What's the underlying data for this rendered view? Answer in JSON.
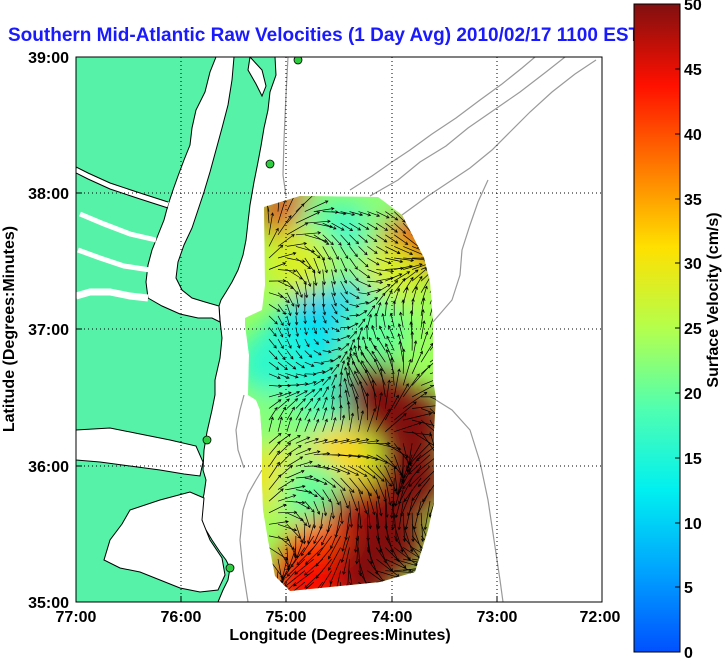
{
  "chart_data": {
    "type": "heatmap",
    "title": "Southern Mid-Atlantic Raw Velocities (1 Day Avg) 2010/02/17 1100 EST",
    "xlabel": "Longitude (Degrees:Minutes)",
    "ylabel": "Latitude (Degrees:Minutes)",
    "colorbar_label": "Surface Velocity (cm/s)",
    "x_ticks": [
      "77:00",
      "76:00",
      "75:00",
      "74:00",
      "73:00",
      "72:00"
    ],
    "y_ticks": [
      "39:00",
      "38:00",
      "37:00",
      "36:00",
      "35:00"
    ],
    "colorbar_ticks": [
      "50",
      "45",
      "40",
      "35",
      "30",
      "25",
      "20",
      "15",
      "10",
      "5",
      "0"
    ],
    "xlim_west_longitude": [
      77,
      72
    ],
    "ylim_latitude": [
      35,
      39
    ],
    "clim": [
      0,
      50
    ],
    "colormap": "jet",
    "grid": "dotted",
    "velocity_field": [
      {
        "lon": 74.9,
        "lat": 37.8,
        "speed": 45
      },
      {
        "lon": 74.6,
        "lat": 37.75,
        "speed": 20
      },
      {
        "lon": 74.25,
        "lat": 37.7,
        "speed": 15
      },
      {
        "lon": 74.0,
        "lat": 37.8,
        "speed": 22
      },
      {
        "lon": 73.8,
        "lat": 37.6,
        "speed": 45
      },
      {
        "lon": 74.0,
        "lat": 37.4,
        "speed": 28
      },
      {
        "lon": 74.6,
        "lat": 37.4,
        "speed": 22
      },
      {
        "lon": 74.9,
        "lat": 37.5,
        "speed": 28
      },
      {
        "lon": 74.75,
        "lat": 37.0,
        "speed": 5
      },
      {
        "lon": 74.4,
        "lat": 37.1,
        "speed": 10
      },
      {
        "lon": 74.15,
        "lat": 37.0,
        "speed": 20
      },
      {
        "lon": 74.9,
        "lat": 36.9,
        "speed": 12
      },
      {
        "lon": 75.15,
        "lat": 36.75,
        "speed": 16
      },
      {
        "lon": 74.65,
        "lat": 36.5,
        "speed": 15
      },
      {
        "lon": 74.15,
        "lat": 36.5,
        "speed": 50
      },
      {
        "lon": 73.8,
        "lat": 36.3,
        "speed": 50
      },
      {
        "lon": 74.7,
        "lat": 36.3,
        "speed": 18
      },
      {
        "lon": 75.1,
        "lat": 36.3,
        "speed": 22
      },
      {
        "lon": 74.5,
        "lat": 36.05,
        "speed": 32
      },
      {
        "lon": 73.8,
        "lat": 35.9,
        "speed": 50
      },
      {
        "lon": 75.1,
        "lat": 35.9,
        "speed": 30
      },
      {
        "lon": 74.75,
        "lat": 35.8,
        "speed": 20
      },
      {
        "lon": 74.3,
        "lat": 35.6,
        "speed": 48
      },
      {
        "lon": 74.0,
        "lat": 35.45,
        "speed": 50
      },
      {
        "lon": 74.7,
        "lat": 35.35,
        "speed": 40
      },
      {
        "lon": 74.3,
        "lat": 35.2,
        "speed": 50
      },
      {
        "lon": 74.8,
        "lat": 35.15,
        "speed": 44
      }
    ],
    "colors": {
      "land": "#55f2a8",
      "coast_line": "#000000",
      "bathymetry": "#9a9a9a",
      "station": "#2ecc40",
      "title": "#1a1aff"
    }
  }
}
